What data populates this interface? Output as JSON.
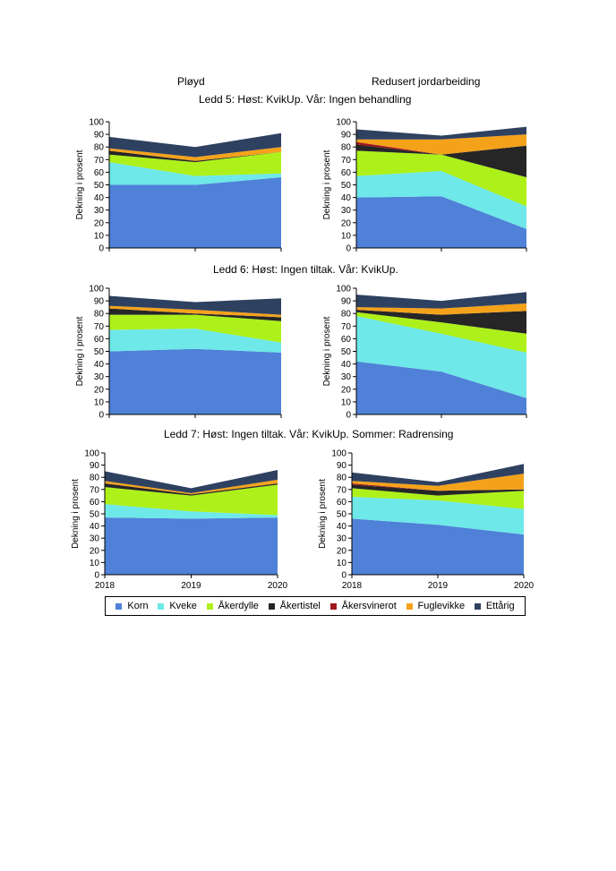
{
  "headers": {
    "left": "Pløyd",
    "right": "Redusert jordarbeiding",
    "ledd5": "Ledd 5: Høst: KvikUp. Vår: Ingen behandling",
    "ledd6": "Ledd 6: Høst: Ingen tiltak. Vår: KvikUp.",
    "ledd7": "Ledd 7: Høst: Ingen tiltak. Vår: KvikUp. Sommer: Radrensing"
  },
  "series": [
    {
      "name": "Korn",
      "color": "#4f81d8"
    },
    {
      "name": "Kveke",
      "color": "#6ee8e8"
    },
    {
      "name": "Åkerdylle",
      "color": "#aef11a"
    },
    {
      "name": "Åkertistel",
      "color": "#262626"
    },
    {
      "name": "Åkersvinerot",
      "color": "#a0161b"
    },
    {
      "name": "Fuglevikke",
      "color": "#f5a21b"
    },
    {
      "name": "Ettårig",
      "color": "#2f4160"
    }
  ],
  "chart_data": [
    {
      "type": "area",
      "stacked": true,
      "title": "Ledd 5 – Pløyd",
      "ylabel": "Dekning  i prosent",
      "ylim": [
        0,
        100
      ],
      "yticks": [
        0,
        10,
        20,
        30,
        40,
        50,
        60,
        70,
        80,
        90,
        100
      ],
      "categories": [
        "2018",
        "2019",
        "2020"
      ],
      "show_x_labels": false,
      "series": [
        {
          "name": "Korn",
          "values": [
            50,
            50,
            56
          ]
        },
        {
          "name": "Kveke",
          "values": [
            18,
            7,
            3
          ]
        },
        {
          "name": "Åkerdylle",
          "values": [
            6,
            11,
            17
          ]
        },
        {
          "name": "Åkertistel",
          "values": [
            3,
            1,
            0
          ]
        },
        {
          "name": "Åkersvinerot",
          "values": [
            0,
            0,
            0
          ]
        },
        {
          "name": "Fuglevikke",
          "values": [
            2,
            3,
            4
          ]
        },
        {
          "name": "Ettårig",
          "values": [
            9,
            8,
            11
          ]
        }
      ]
    },
    {
      "type": "area",
      "stacked": true,
      "title": "Ledd 5 – Redusert jordarbeiding",
      "ylabel": "Dekning  i prosent",
      "ylim": [
        0,
        100
      ],
      "yticks": [
        0,
        10,
        20,
        30,
        40,
        50,
        60,
        70,
        80,
        90,
        100
      ],
      "categories": [
        "2018",
        "2019",
        "2020"
      ],
      "show_x_labels": false,
      "series": [
        {
          "name": "Korn",
          "values": [
            40,
            41,
            15
          ]
        },
        {
          "name": "Kveke",
          "values": [
            17,
            20,
            18
          ]
        },
        {
          "name": "Åkerdylle",
          "values": [
            20,
            13,
            23
          ]
        },
        {
          "name": "Åkertistel",
          "values": [
            5,
            0,
            25
          ]
        },
        {
          "name": "Åkersvinerot",
          "values": [
            2,
            0,
            0
          ]
        },
        {
          "name": "Fuglevikke",
          "values": [
            2,
            12,
            9
          ]
        },
        {
          "name": "Ettårig",
          "values": [
            8,
            3,
            6
          ]
        }
      ]
    },
    {
      "type": "area",
      "stacked": true,
      "title": "Ledd 6 – Pløyd",
      "ylabel": "Dekning  i prosent",
      "ylim": [
        0,
        100
      ],
      "yticks": [
        0,
        10,
        20,
        30,
        40,
        50,
        60,
        70,
        80,
        90,
        100
      ],
      "categories": [
        "2018",
        "2019",
        "2020"
      ],
      "show_x_labels": false,
      "series": [
        {
          "name": "Korn",
          "values": [
            50,
            52,
            49
          ]
        },
        {
          "name": "Kveke",
          "values": [
            17,
            16,
            8
          ]
        },
        {
          "name": "Åkerdylle",
          "values": [
            12,
            11,
            17
          ]
        },
        {
          "name": "Åkertistel",
          "values": [
            5,
            1,
            3
          ]
        },
        {
          "name": "Åkersvinerot",
          "values": [
            0,
            0,
            0
          ]
        },
        {
          "name": "Fuglevikke",
          "values": [
            2,
            3,
            2
          ]
        },
        {
          "name": "Ettårig",
          "values": [
            8,
            6,
            13
          ]
        }
      ]
    },
    {
      "type": "area",
      "stacked": true,
      "title": "Ledd 6 – Redusert jordarbeiding",
      "ylabel": "Dekning  i prosent",
      "ylim": [
        0,
        100
      ],
      "yticks": [
        0,
        10,
        20,
        30,
        40,
        50,
        60,
        70,
        80,
        90,
        100
      ],
      "categories": [
        "2018",
        "2019",
        "2020"
      ],
      "show_x_labels": false,
      "series": [
        {
          "name": "Korn",
          "values": [
            42,
            34,
            13
          ]
        },
        {
          "name": "Kveke",
          "values": [
            36,
            30,
            36
          ]
        },
        {
          "name": "Åkerdylle",
          "values": [
            3,
            9,
            15
          ]
        },
        {
          "name": "Åkertistel",
          "values": [
            2,
            6,
            18
          ]
        },
        {
          "name": "Åkersvinerot",
          "values": [
            0,
            0,
            0
          ]
        },
        {
          "name": "Fuglevikke",
          "values": [
            2,
            5,
            6
          ]
        },
        {
          "name": "Ettårig",
          "values": [
            10,
            6,
            9
          ]
        }
      ]
    },
    {
      "type": "area",
      "stacked": true,
      "title": "Ledd 7 – Pløyd",
      "ylabel": "Dekning  i prosent",
      "ylim": [
        0,
        100
      ],
      "yticks": [
        0,
        10,
        20,
        30,
        40,
        50,
        60,
        70,
        80,
        90,
        100
      ],
      "categories": [
        "2018",
        "2019",
        "2020"
      ],
      "show_x_labels": true,
      "series": [
        {
          "name": "Korn",
          "values": [
            47,
            46,
            47
          ]
        },
        {
          "name": "Kveke",
          "values": [
            11,
            6,
            2
          ]
        },
        {
          "name": "Åkerdylle",
          "values": [
            14,
            13,
            25
          ]
        },
        {
          "name": "Åkertistel",
          "values": [
            3,
            1,
            1
          ]
        },
        {
          "name": "Åkersvinerot",
          "values": [
            0,
            0,
            0
          ]
        },
        {
          "name": "Fuglevikke",
          "values": [
            2,
            1,
            3
          ]
        },
        {
          "name": "Ettårig",
          "values": [
            8,
            4,
            8
          ]
        }
      ]
    },
    {
      "type": "area",
      "stacked": true,
      "title": "Ledd 7 – Redusert jordarbeiding",
      "ylabel": "Dekning  i prosent",
      "ylim": [
        0,
        100
      ],
      "yticks": [
        0,
        10,
        20,
        30,
        40,
        50,
        60,
        70,
        80,
        90,
        100
      ],
      "categories": [
        "2018",
        "2019",
        "2020"
      ],
      "show_x_labels": true,
      "series": [
        {
          "name": "Korn",
          "values": [
            46,
            41,
            33
          ]
        },
        {
          "name": "Kveke",
          "values": [
            18,
            20,
            21
          ]
        },
        {
          "name": "Åkerdylle",
          "values": [
            7,
            4,
            15
          ]
        },
        {
          "name": "Åkertistel",
          "values": [
            3,
            4,
            1
          ]
        },
        {
          "name": "Åkersvinerot",
          "values": [
            1,
            0,
            0
          ]
        },
        {
          "name": "Fuglevikke",
          "values": [
            2,
            4,
            13
          ]
        },
        {
          "name": "Ettårig",
          "values": [
            7,
            3,
            8
          ]
        }
      ]
    }
  ]
}
